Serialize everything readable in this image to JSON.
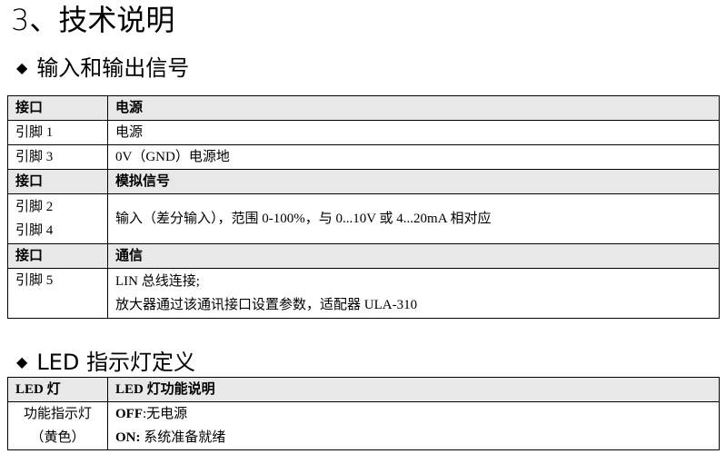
{
  "title": "3、技术说明",
  "section1": {
    "heading": "输入和输出信号",
    "rows": [
      {
        "type": "header",
        "c1": "接口",
        "c2": "电源"
      },
      {
        "c1": "引脚 1",
        "c2": "电源"
      },
      {
        "c1": "引脚 3",
        "c2": "0V（GND）电源地"
      },
      {
        "type": "header",
        "c1": "接口",
        "c2": "模拟信号"
      },
      {
        "c1a": "引脚 2",
        "c1b": "引脚 4",
        "c2": "输入（差分输入），范围 0-100%，与 0...10V 或 4...20mA 相对应"
      },
      {
        "type": "header",
        "c1": "接口",
        "c2": "通信"
      },
      {
        "c1": "引脚 5",
        "c2a": "LIN 总线连接;",
        "c2b": "放大器通过该通讯接口设置参数，适配器 ULA-310"
      }
    ]
  },
  "section2": {
    "heading": "LED 指示灯定义",
    "header": {
      "c1": "LED 灯",
      "c2": "LED 灯功能说明"
    },
    "row": {
      "c1a": "功能指示灯",
      "c1b": "（黄色）",
      "off_label": "OFF",
      "off_text": ":无电源",
      "on_label": "ON:",
      "on_text": " 系统准备就绪"
    }
  }
}
